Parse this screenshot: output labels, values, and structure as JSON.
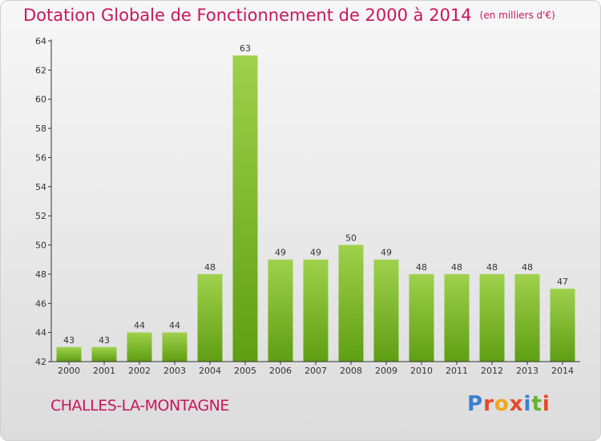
{
  "header": {
    "title": "Dotation Globale de Fonctionnement de 2000 à 2014",
    "subtitle": "(en milliers d'€)"
  },
  "footer": {
    "commune": "CHALLES-LA-MONTAGNE",
    "logo": "Proxiti"
  },
  "colors": {
    "title": "#c8175c",
    "bar_light": "#9fd14c",
    "bar_dark": "#5f9e12",
    "logo_letters": [
      "#3b7fd0",
      "#e8462a",
      "#f2a61c",
      "#e8462a",
      "#3b7fd0",
      "#66b22f",
      "#e8462a"
    ]
  },
  "chart_data": {
    "type": "bar",
    "title": "Dotation Globale de Fonctionnement de 2000 à 2014",
    "subtitle": "(en milliers d'€)",
    "categories": [
      "2000",
      "2001",
      "2002",
      "2003",
      "2004",
      "2005",
      "2006",
      "2007",
      "2008",
      "2009",
      "2010",
      "2011",
      "2012",
      "2013",
      "2014"
    ],
    "values": [
      43,
      43,
      44,
      44,
      48,
      63,
      49,
      49,
      50,
      49,
      48,
      48,
      48,
      48,
      47
    ],
    "ylim": [
      42,
      64
    ],
    "yticks": [
      42,
      44,
      46,
      48,
      50,
      52,
      54,
      56,
      58,
      60,
      62,
      64
    ],
    "grid": false,
    "legend": "none"
  }
}
